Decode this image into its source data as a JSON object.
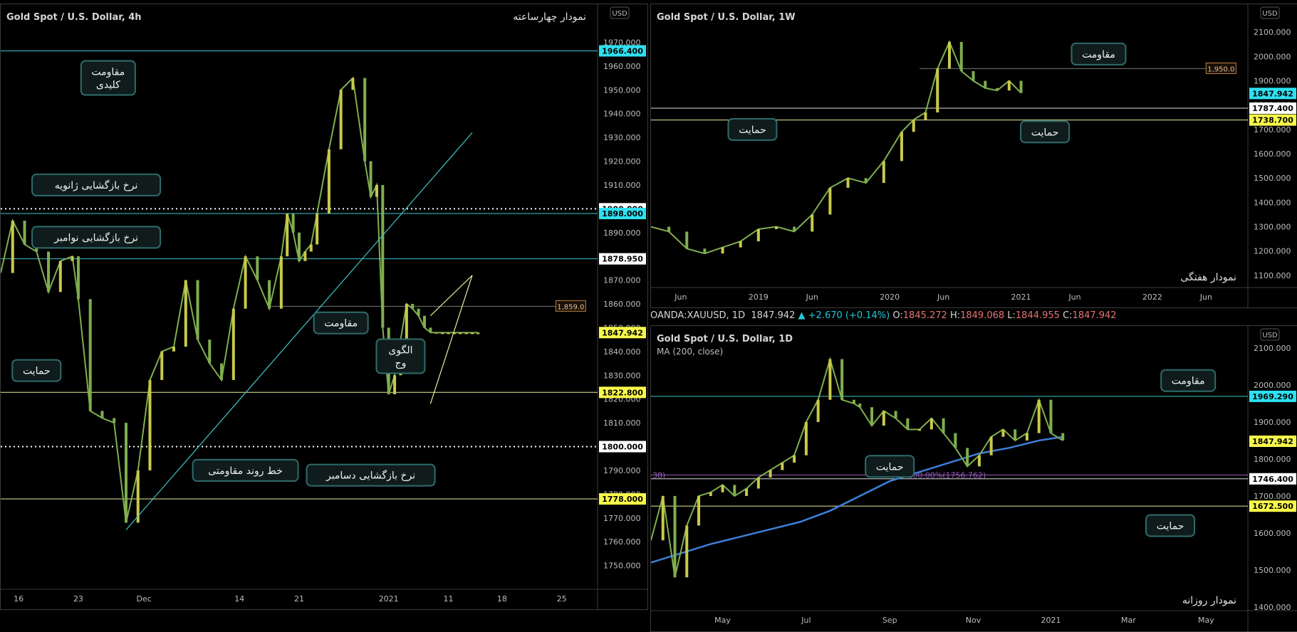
{
  "info_bar": {
    "symbol": "OANDA:XAUUSD, 1D",
    "last": "1847.942",
    "change": "▲ +2.670 (+0.14%)",
    "o_label": "O:",
    "o": "1845.272",
    "h_label": "H:",
    "h": "1849.068",
    "l_label": "L:",
    "l": "1844.955",
    "c_label": "C:",
    "c": "1847.942"
  },
  "colors": {
    "background": "#000000",
    "cyan_line": "#3fc6cc",
    "yellow_line": "#ecec9a",
    "white_dotted": "#ffffff",
    "callout_border": "#2f6b6b",
    "callout_bg": "#101c1c",
    "candle_green": "#7fae4f",
    "candle_yellow": "#c8c94a",
    "ma_blue": "#3d7fd9",
    "fib_purple": "#9c5cc0",
    "cyan_badge": "#2ee0f0",
    "yellow_badge": "#f8f84a"
  },
  "chart_data": [
    {
      "id": "4h",
      "type": "line",
      "title": "Gold Spot / U.S. Dollar, 4h",
      "subtitle": "نمودار چهارساعته",
      "currency_label": "USD",
      "y_range": [
        1740,
        1980
      ],
      "y_ticks": [
        "1970.000",
        "1960.000",
        "1950.000",
        "1940.000",
        "1930.000",
        "1920.000",
        "1910.000",
        "1900.000",
        "1890.000",
        "1880.000",
        "1870.000",
        "1860.000",
        "1850.000",
        "1840.000",
        "1830.000",
        "1820.000",
        "1810.000",
        "1800.000",
        "1790.000",
        "1780.000",
        "1770.000",
        "1760.000",
        "1750.000"
      ],
      "y_tick_values": [
        1970,
        1960,
        1950,
        1940,
        1930,
        1920,
        1910,
        1900,
        1890,
        1880,
        1870,
        1860,
        1850,
        1840,
        1830,
        1820,
        1810,
        1800,
        1790,
        1780,
        1770,
        1760,
        1750
      ],
      "x_ticks": [
        "16",
        "23",
        "Dec",
        "14",
        "21",
        "2021",
        "11",
        "18",
        "25"
      ],
      "x_range": [
        0,
        100
      ],
      "x_tick_values": [
        3,
        13,
        24,
        40,
        50,
        65,
        75,
        84,
        94
      ],
      "price_series": {
        "name": "",
        "x": [
          0,
          2,
          4,
          6,
          8,
          10,
          12,
          13,
          15,
          17,
          19,
          21,
          23,
          25,
          27,
          29,
          31,
          33,
          35,
          37,
          39,
          41,
          43,
          45,
          47,
          48,
          49,
          50,
          51,
          52,
          53,
          55,
          57,
          59,
          61,
          62,
          63,
          64,
          65,
          66,
          67,
          68,
          69,
          70,
          71,
          72,
          73,
          74,
          75,
          76,
          77,
          78,
          79,
          80
        ],
        "values": [
          1873,
          1895,
          1885,
          1882,
          1865,
          1878,
          1880,
          1862,
          1815,
          1812,
          1810,
          1768,
          1790,
          1828,
          1840,
          1842,
          1870,
          1845,
          1835,
          1828,
          1858,
          1880,
          1870,
          1858,
          1880,
          1898,
          1890,
          1878,
          1882,
          1885,
          1898,
          1925,
          1950,
          1955,
          1920,
          1905,
          1910,
          1850,
          1822,
          1830,
          1845,
          1860,
          1858,
          1855,
          1850,
          1848,
          1847.9,
          1847.9,
          1847.9,
          1847.9,
          1847.9,
          1847.9,
          1847.9,
          1847.9
        ]
      },
      "levels": [
        {
          "price": 1966.4,
          "label": "1966.400",
          "style": "cyan",
          "badge": "cyan"
        },
        {
          "price": 1900.0,
          "label": "1900.000",
          "style": "dotted",
          "badge": "white"
        },
        {
          "price": 1898.0,
          "label": "1898.000",
          "style": "cyan",
          "badge": "cyan"
        },
        {
          "price": 1878.95,
          "label": "1878.950",
          "style": "cyan",
          "badge": "white"
        },
        {
          "price": 1859.0,
          "label": "1,859.0",
          "style": "thin",
          "badge": "orange"
        },
        {
          "price": 1847.942,
          "label": "1847.942",
          "style": "none",
          "badge": "yellow"
        },
        {
          "price": 1822.8,
          "label": "1822.800",
          "style": "yellow",
          "badge": "yellow"
        },
        {
          "price": 1800.0,
          "label": "1800.000",
          "style": "dotted",
          "badge": "white"
        },
        {
          "price": 1778.0,
          "label": "1778.000",
          "style": "yellow",
          "badge": "yellow"
        }
      ],
      "trendlines": [
        {
          "name": "",
          "from": [
            21,
            1765
          ],
          "to": [
            79,
            1932
          ]
        }
      ],
      "wedge": [
        {
          "from": [
            72,
            1818
          ],
          "to": [
            79,
            1872
          ]
        },
        {
          "from": [
            72,
            1855
          ],
          "to": [
            79,
            1872
          ]
        }
      ],
      "annotations": [
        {
          "key": "key_resistance",
          "text": "مقاومت\nکلیدی",
          "x": 18,
          "price": 1955
        },
        {
          "key": "jan_open",
          "text": "نرخ بازگشایی ژانویه",
          "x": 16,
          "price": 1910
        },
        {
          "key": "nov_open",
          "text": "نرخ بازگشایی نوامبر",
          "x": 16,
          "price": 1888
        },
        {
          "key": "resistance",
          "text": "مقاومت",
          "x": 57,
          "price": 1852
        },
        {
          "key": "wedge",
          "text": "الگوی\nوج",
          "x": 67,
          "price": 1838
        },
        {
          "key": "support",
          "text": "حمایت",
          "x": 6,
          "price": 1832
        },
        {
          "key": "trend_res",
          "text": "خط روند مقاومتی",
          "x": 41,
          "price": 1790
        },
        {
          "key": "dec_open",
          "text": "نرخ بازگشایی دسامبر",
          "x": 62,
          "price": 1788
        }
      ]
    },
    {
      "id": "1w",
      "type": "line",
      "title": "Gold Spot / U.S. Dollar, 1W",
      "subtitle": "نمودار هفتگی",
      "currency_label": "USD",
      "y_range": [
        1050,
        2200
      ],
      "y_ticks": [
        "2100.000",
        "2000.000",
        "1900.000",
        "1800.000",
        "1700.000",
        "1600.000",
        "1500.000",
        "1400.000",
        "1300.000",
        "1200.000",
        "1100.000"
      ],
      "y_tick_values": [
        2100,
        2000,
        1900,
        1800,
        1700,
        1600,
        1500,
        1400,
        1300,
        1200,
        1100
      ],
      "x_ticks": [
        "Jun",
        "2019",
        "Jun",
        "2020",
        "Jun",
        "2021",
        "Jun",
        "2022",
        "Jun"
      ],
      "x_range": [
        0,
        100
      ],
      "x_tick_values": [
        5,
        18,
        27,
        40,
        49,
        62,
        71,
        84,
        93
      ],
      "price_series": {
        "name": "",
        "x": [
          0,
          3,
          6,
          9,
          12,
          15,
          18,
          21,
          24,
          27,
          30,
          33,
          36,
          39,
          42,
          44,
          46,
          48,
          50,
          52,
          54,
          56,
          58,
          60,
          62
        ],
        "values": [
          1300,
          1280,
          1210,
          1190,
          1215,
          1240,
          1290,
          1300,
          1280,
          1350,
          1460,
          1500,
          1480,
          1570,
          1690,
          1740,
          1770,
          1950,
          2060,
          1940,
          1900,
          1870,
          1860,
          1900,
          1850
        ]
      },
      "levels": [
        {
          "price": 1950.0,
          "label": "1,950.0",
          "style": "thin",
          "badge": "orange"
        },
        {
          "price": 1847.942,
          "label": "1847.942",
          "style": "none",
          "badge": "cyan"
        },
        {
          "price": 1787.4,
          "label": "1787.400",
          "style": "white",
          "badge": "white"
        },
        {
          "price": 1738.7,
          "label": "1738.700",
          "style": "yellow",
          "badge": "yellow"
        }
      ],
      "annotations": [
        {
          "key": "resistance",
          "text": "مقاومت",
          "x": 75,
          "price": 2010
        },
        {
          "key": "support_left",
          "text": "حمایت",
          "x": 17,
          "price": 1700
        },
        {
          "key": "support_right",
          "text": "حمایت",
          "x": 66,
          "price": 1690
        }
      ]
    },
    {
      "id": "1d",
      "type": "line",
      "title": "Gold Spot / U.S. Dollar, 1D",
      "subtitle": "نمودار روزانه",
      "indicator_label": "MA (200, close)",
      "currency_label": "USD",
      "y_range": [
        1390,
        2150
      ],
      "y_ticks": [
        "2100.000",
        "2000.000",
        "1900.000",
        "1800.000",
        "1700.000",
        "1600.000",
        "1500.000",
        "1400.000"
      ],
      "y_tick_values": [
        2100,
        2000,
        1900,
        1800,
        1700,
        1600,
        1500,
        1400
      ],
      "x_ticks": [
        "May",
        "Jul",
        "Sep",
        "Nov",
        "2021",
        "Mar",
        "May"
      ],
      "x_range": [
        0,
        100
      ],
      "x_tick_values": [
        12,
        26,
        40,
        54,
        67,
        80,
        93
      ],
      "price_series": {
        "name": "",
        "x": [
          0,
          2,
          4,
          6,
          8,
          10,
          12,
          14,
          16,
          18,
          20,
          22,
          24,
          26,
          28,
          30,
          32,
          34,
          35,
          37,
          39,
          41,
          43,
          45,
          47,
          49,
          51,
          53,
          55,
          57,
          59,
          61,
          63,
          65,
          67,
          69
        ],
        "values": [
          1580,
          1700,
          1480,
          1620,
          1700,
          1710,
          1730,
          1700,
          1720,
          1750,
          1770,
          1790,
          1810,
          1900,
          1960,
          2070,
          1960,
          1950,
          1940,
          1890,
          1930,
          1910,
          1880,
          1880,
          1910,
          1870,
          1830,
          1780,
          1810,
          1860,
          1880,
          1850,
          1870,
          1960,
          1870,
          1850
        ]
      },
      "ma_series": {
        "name": "",
        "x": [
          0,
          5,
          10,
          15,
          20,
          25,
          30,
          35,
          40,
          45,
          50,
          55,
          60,
          65,
          69
        ],
        "values": [
          1520,
          1545,
          1570,
          1590,
          1610,
          1630,
          1660,
          1700,
          1740,
          1765,
          1790,
          1815,
          1830,
          1850,
          1860
        ]
      },
      "levels": [
        {
          "price": 1969.29,
          "label": "1969.290",
          "style": "cyan",
          "badge": "cyan"
        },
        {
          "price": 1847.942,
          "label": "1847.942",
          "style": "none",
          "badge": "yellow"
        },
        {
          "price": 1756.762,
          "label": "100.00%(1756.762)",
          "style": "purple",
          "badge": "none"
        },
        {
          "price": 1746.4,
          "label": "1746.400",
          "style": "white",
          "badge": "white"
        },
        {
          "price": 1672.5,
          "label": "1672.500",
          "style": "yellow",
          "badge": "yellow"
        }
      ],
      "fib_left_label": "38)",
      "annotations": [
        {
          "key": "resistance",
          "text": "مقاومت",
          "x": 90,
          "price": 2012
        },
        {
          "key": "support_mid",
          "text": "حمایت",
          "x": 40,
          "price": 1780
        },
        {
          "key": "support_right",
          "text": "حمایت",
          "x": 87,
          "price": 1620
        }
      ]
    }
  ]
}
